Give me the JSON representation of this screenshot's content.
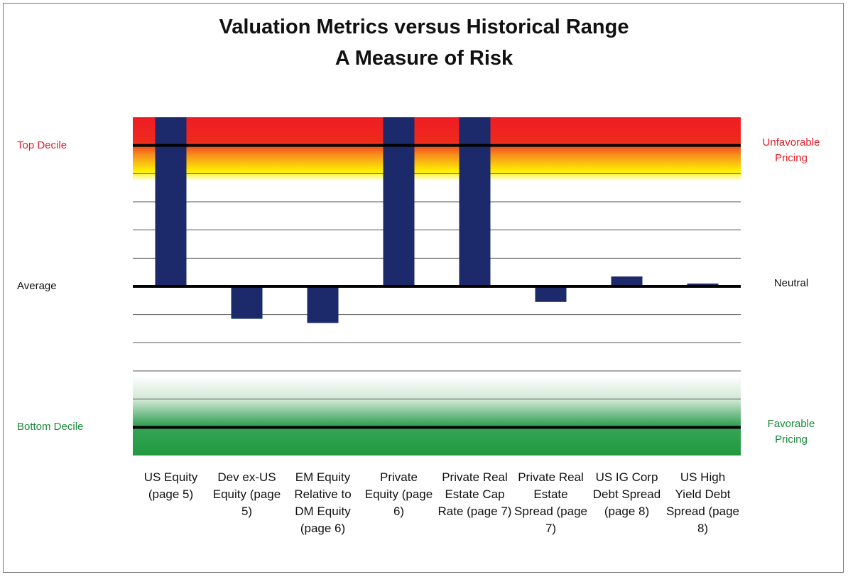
{
  "chart_data": {
    "type": "bar",
    "title": "Valuation Metrics versus Historical Range",
    "subtitle": "A Measure of Risk",
    "categories": [
      "US Equity (page 5)",
      "Dev ex-US Equity (page 5)",
      "EM Equity Relative to DM Equity (page 6)",
      "Private Equity (page 6)",
      "Private Real Estate Cap Rate (page 7)",
      "Private Real Estate Spread (page 7)",
      "US IG Corp Debt Spread (page 8)",
      "US High Yield Debt Spread (page 8)"
    ],
    "values": [
      6,
      -1.15,
      -1.3,
      6,
      6,
      -0.55,
      0.35,
      0.1
    ],
    "color": "#1c2a6b",
    "ylim": [
      -6,
      6
    ],
    "yticks": [
      {
        "value": 5,
        "label": "Top Decile"
      },
      {
        "value": 0,
        "label": "Average"
      },
      {
        "value": -5,
        "label": "Bottom Decile"
      }
    ],
    "y2ticks": [
      {
        "value": 5,
        "label": "Unfavorable Pricing"
      },
      {
        "value": 0,
        "label": "Neutral"
      },
      {
        "value": -5,
        "label": "Favorable Pricing"
      }
    ],
    "grid_values": [
      -5,
      -4,
      -3,
      -2,
      -1,
      0,
      1,
      2,
      3,
      4,
      5
    ]
  }
}
